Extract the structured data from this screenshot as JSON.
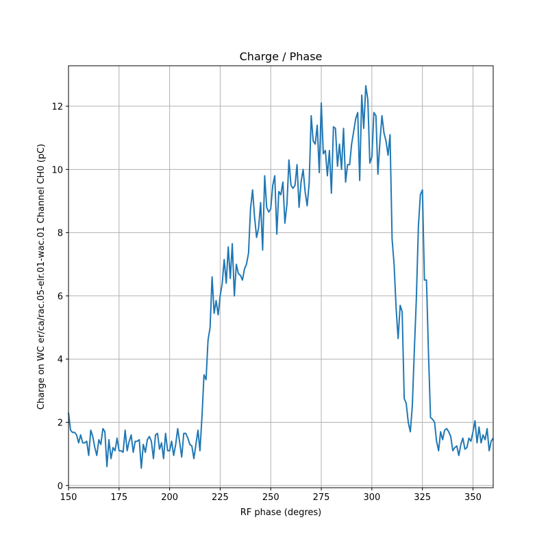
{
  "chart_data": {
    "type": "line",
    "title": "Charge / Phase",
    "xlabel": "RF phase (degres)",
    "ylabel": "Charge on WC er/ca/rac.05-elr.01-wac.01 Channel CH0 (pC)",
    "xlim": [
      150,
      360
    ],
    "ylim": [
      -0.07,
      13.28
    ],
    "grid": true,
    "xticks": [
      150,
      175,
      200,
      225,
      250,
      275,
      300,
      325,
      350
    ],
    "yticks": [
      0,
      2,
      4,
      6,
      8,
      10,
      12
    ],
    "line_color": "#1f77b4",
    "x": [
      150,
      151,
      152,
      153,
      154,
      155,
      156,
      157,
      158,
      159,
      160,
      161,
      162,
      163,
      164,
      165,
      166,
      167,
      168,
      169,
      170,
      171,
      172,
      173,
      174,
      175,
      176,
      177,
      178,
      179,
      180,
      181,
      182,
      183,
      184,
      185,
      186,
      187,
      188,
      189,
      190,
      191,
      192,
      193,
      194,
      195,
      196,
      197,
      198,
      199,
      200,
      201,
      202,
      203,
      204,
      205,
      206,
      207,
      208,
      209,
      210,
      211,
      212,
      213,
      214,
      215,
      216,
      217,
      218,
      219,
      220,
      221,
      222,
      223,
      224,
      225,
      226,
      227,
      228,
      229,
      230,
      231,
      232,
      233,
      234,
      235,
      236,
      237,
      238,
      239,
      240,
      241,
      242,
      243,
      244,
      245,
      246,
      247,
      248,
      249,
      250,
      251,
      252,
      253,
      254,
      255,
      256,
      257,
      258,
      259,
      260,
      261,
      262,
      263,
      264,
      265,
      266,
      267,
      268,
      269,
      270,
      271,
      272,
      273,
      274,
      275,
      276,
      277,
      278,
      279,
      280,
      281,
      282,
      283,
      284,
      285,
      286,
      287,
      288,
      289,
      290,
      291,
      292,
      293,
      294,
      295,
      296,
      297,
      298,
      299,
      300,
      301,
      302,
      303,
      304,
      305,
      306,
      307,
      308,
      309,
      310,
      311,
      312,
      313,
      314,
      315,
      316,
      317,
      318,
      319,
      320,
      321,
      322,
      323,
      324,
      325,
      326,
      327,
      328,
      329,
      330,
      331,
      332,
      333,
      334,
      335,
      336,
      337,
      338,
      339,
      340,
      341,
      342,
      343,
      344,
      345,
      346,
      347,
      348,
      349,
      350,
      351,
      352,
      353,
      354,
      355,
      356,
      357,
      358,
      359,
      360
    ],
    "y": [
      2.3,
      1.75,
      1.68,
      1.68,
      1.6,
      1.35,
      1.6,
      1.35,
      1.35,
      1.4,
      0.95,
      1.75,
      1.55,
      1.2,
      0.95,
      1.45,
      1.3,
      1.8,
      1.7,
      0.6,
      1.45,
      0.85,
      1.2,
      1.1,
      1.5,
      1.1,
      1.1,
      1.05,
      1.75,
      1.1,
      1.4,
      1.6,
      1.05,
      1.4,
      1.4,
      1.45,
      0.55,
      1.3,
      1.05,
      1.45,
      1.55,
      1.4,
      0.85,
      1.6,
      1.65,
      1.15,
      1.35,
      0.85,
      1.65,
      1.1,
      1.1,
      1.4,
      0.95,
      1.3,
      1.8,
      1.35,
      0.9,
      1.65,
      1.65,
      1.5,
      1.3,
      1.25,
      0.85,
      1.3,
      1.75,
      1.1,
      2.2,
      3.5,
      3.35,
      4.6,
      5.0,
      6.6,
      5.45,
      5.85,
      5.4,
      6.0,
      6.4,
      7.15,
      6.4,
      7.55,
      6.55,
      7.65,
      6.0,
      7.0,
      6.7,
      6.65,
      6.5,
      6.85,
      7.0,
      7.35,
      8.75,
      9.35,
      8.5,
      7.85,
      8.15,
      8.95,
      7.45,
      9.8,
      8.8,
      8.65,
      8.75,
      9.5,
      9.8,
      7.95,
      9.3,
      9.2,
      9.6,
      8.3,
      8.9,
      10.3,
      9.5,
      9.4,
      9.5,
      10.15,
      8.8,
      9.6,
      10.0,
      9.3,
      8.85,
      9.55,
      11.7,
      10.9,
      10.8,
      11.4,
      9.9,
      12.1,
      10.5,
      10.6,
      9.8,
      10.6,
      9.25,
      11.35,
      11.3,
      10.1,
      10.8,
      10.0,
      11.3,
      9.6,
      10.15,
      10.15,
      10.8,
      11.2,
      11.6,
      11.8,
      9.65,
      12.35,
      11.3,
      12.65,
      12.2,
      10.2,
      10.4,
      11.8,
      11.7,
      9.85,
      10.9,
      11.7,
      11.15,
      10.9,
      10.45,
      11.1,
      7.8,
      7.0,
      5.6,
      4.65,
      5.7,
      5.5,
      2.75,
      2.6,
      2.0,
      1.7,
      2.5,
      4.3,
      5.9,
      8.2,
      9.2,
      9.35,
      6.5,
      6.5,
      4.2,
      2.15,
      2.1,
      2.0,
      1.4,
      1.1,
      1.7,
      1.45,
      1.75,
      1.8,
      1.7,
      1.55,
      1.1,
      1.2,
      1.25,
      0.95,
      1.3,
      1.5,
      1.15,
      1.2,
      1.5,
      1.4,
      1.7,
      2.05,
      1.35,
      1.85,
      1.35,
      1.6,
      1.45,
      1.8,
      1.1,
      1.4,
      1.5
    ]
  }
}
